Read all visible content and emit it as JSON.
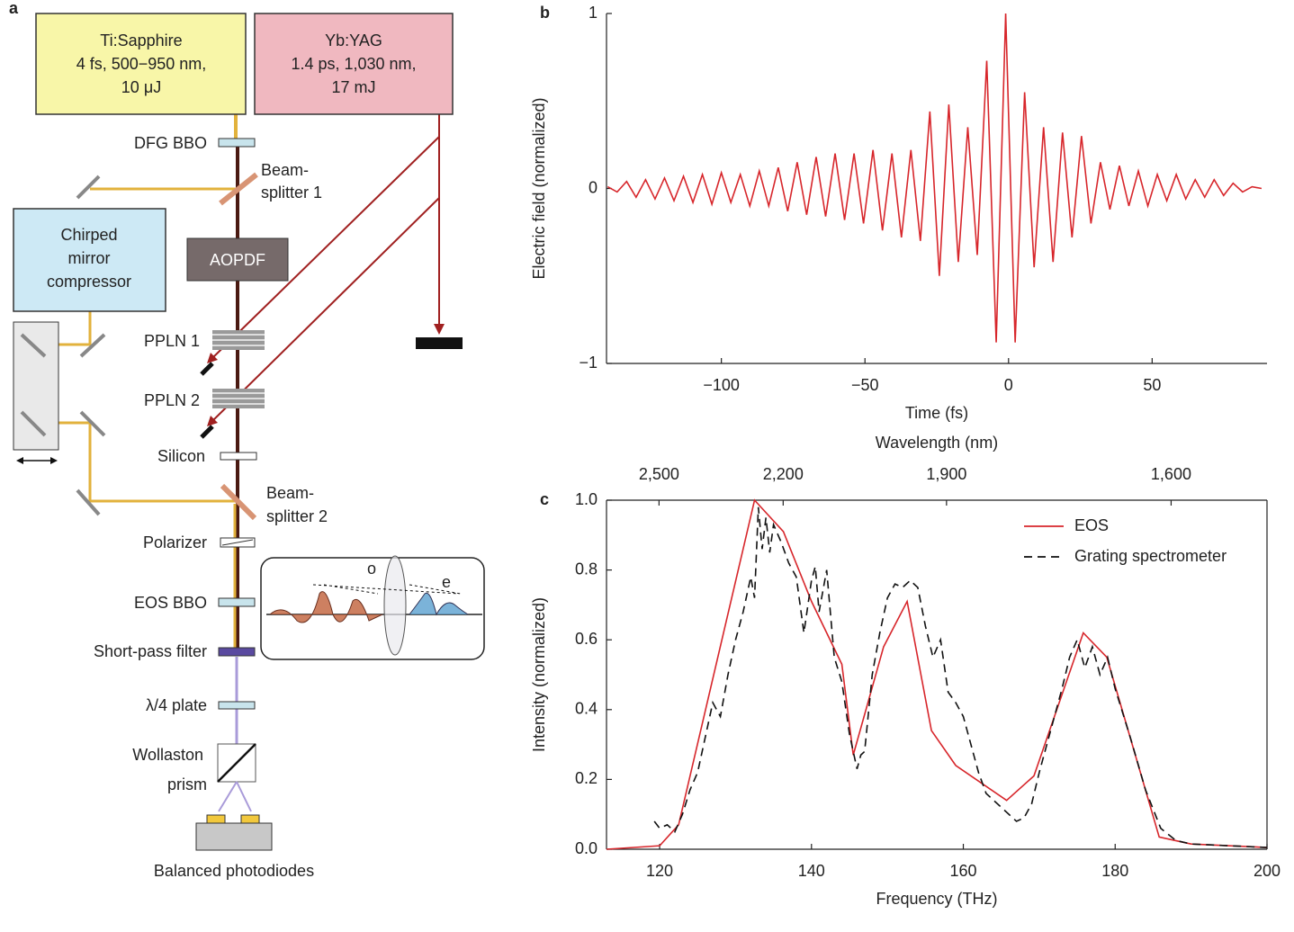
{
  "diagram": {
    "panel_label": "a",
    "ti_sapphire": [
      "Ti:Sapphire",
      "4 fs, 500−950 nm,",
      "10 μJ"
    ],
    "yb_yag": [
      "Yb:YAG",
      "1.4 ps, 1,030 nm,",
      "17 mJ"
    ],
    "compressor": [
      "Chirped",
      "mirror",
      "compressor"
    ],
    "aopdf": "AOPDF",
    "dfg_bbo": "DFG BBO",
    "beamsplitter_1": [
      "Beam-",
      "splitter 1"
    ],
    "ppln_1": "PPLN 1",
    "ppln_2": "PPLN 2",
    "silicon": "Silicon",
    "beamsplitter_2": [
      "Beam-",
      "splitter 2"
    ],
    "polarizer": "Polarizer",
    "eos_bbo": "EOS BBO",
    "short_pass_filter": "Short-pass filter",
    "quarter_wave_plate": "λ/4 plate",
    "wollaston": [
      "Wollaston",
      "prism"
    ],
    "photodiodes": "Balanced photodiodes",
    "inset": {
      "ordinary": "o",
      "extraordinary": "e"
    }
  },
  "chart_data": [
    {
      "type": "line",
      "panel_label": "b",
      "xlabel": "Time (fs)",
      "ylabel": "Electric field (normalized)",
      "color": "#d7262b",
      "x": [
        -139.6,
        -136.3,
        -133,
        -129.7,
        -126.4,
        -123.1,
        -119.8,
        -116.5,
        -113.2,
        -109.9,
        -106.6,
        -103.3,
        -100,
        -96.7,
        -93.4,
        -90.1,
        -86.8,
        -83.5,
        -80.2,
        -76.9,
        -73.6,
        -70.3,
        -67,
        -63.7,
        -60.4,
        -57.1,
        -53.8,
        -50.5,
        -47.2,
        -43.9,
        -40.6,
        -37.3,
        -34,
        -30.7,
        -27.4,
        -24.1,
        -20.8,
        -17.5,
        -14.2,
        -10.9,
        -7.6,
        -4.3,
        -1,
        2.3,
        5.6,
        8.9,
        12.2,
        15.5,
        18.8,
        22.1,
        25.4,
        28.7,
        32,
        35.3,
        38.6,
        41.9,
        45.2,
        48.5,
        51.8,
        55.1,
        58.4,
        61.7,
        65,
        68.3,
        71.6,
        74.9,
        78.2,
        81.5,
        84.8,
        88.1
      ],
      "values": [
        0.01,
        -0.02,
        0.04,
        -0.05,
        0.05,
        -0.06,
        0.06,
        -0.07,
        0.07,
        -0.08,
        0.08,
        -0.09,
        0.09,
        -0.08,
        0.08,
        -0.1,
        0.1,
        -0.1,
        0.12,
        -0.13,
        0.15,
        -0.15,
        0.18,
        -0.16,
        0.2,
        -0.18,
        0.2,
        -0.2,
        0.22,
        -0.24,
        0.2,
        -0.28,
        0.22,
        -0.3,
        0.44,
        -0.5,
        0.48,
        -0.42,
        0.35,
        -0.38,
        0.73,
        -0.88,
        1,
        -0.88,
        0.55,
        -0.45,
        0.35,
        -0.42,
        0.32,
        -0.28,
        0.3,
        -0.2,
        0.15,
        -0.12,
        0.13,
        -0.1,
        0.1,
        -0.1,
        0.08,
        -0.07,
        0.08,
        -0.06,
        0.05,
        -0.05,
        0.05,
        -0.04,
        0.03,
        -0.02,
        0.01,
        0
      ],
      "xlim": [
        -140,
        90
      ],
      "ylim": [
        -1,
        1
      ],
      "xticks": [
        {
          "value": -100,
          "label": "−100"
        },
        {
          "value": -50,
          "label": "−50"
        },
        0,
        50
      ],
      "yticks": [
        {
          "value": -1,
          "label": "−1"
        },
        0,
        1
      ]
    },
    {
      "type": "line",
      "panel_label": "c",
      "xlabel": "Frequency (THz)",
      "ylabel": "Intensity (normalized)",
      "x2label": "Wavelength (nm)",
      "legend": "upper right",
      "series": [
        {
          "name": "EOS",
          "color": "#d7262b",
          "dash": "solid",
          "x": [
            113,
            120,
            122.5,
            132.5,
            136.3,
            140,
            144,
            145.5,
            149.5,
            152.6,
            155.8,
            159,
            165.7,
            169.3,
            175.8,
            178.9,
            185.8,
            190,
            200
          ],
          "values": [
            0,
            0.01,
            0.07,
            1,
            0.91,
            0.71,
            0.53,
            0.27,
            0.58,
            0.71,
            0.34,
            0.24,
            0.14,
            0.21,
            0.62,
            0.55,
            0.035,
            0.015,
            0.005
          ]
        },
        {
          "name": "Grating spectrometer",
          "color": "#111111",
          "dash": "dashed",
          "x": [
            119.3,
            120,
            121,
            122,
            123,
            124,
            125,
            126,
            127,
            128,
            129,
            130,
            131,
            132,
            132.5,
            133,
            133.5,
            134,
            134.5,
            135,
            136,
            137,
            138,
            139,
            140,
            140.5,
            141,
            142,
            143,
            144,
            145,
            146,
            146.5,
            147,
            148,
            149,
            150,
            151,
            152,
            153,
            154,
            155,
            156,
            157,
            158,
            159,
            160,
            161,
            162,
            163,
            164,
            165,
            166,
            167,
            168,
            169,
            170,
            171,
            172,
            173,
            174,
            175,
            176,
            177,
            178,
            179,
            180,
            182,
            184,
            186,
            188,
            190,
            195,
            200
          ],
          "values": [
            0.08,
            0.06,
            0.07,
            0.05,
            0.1,
            0.17,
            0.22,
            0.32,
            0.42,
            0.38,
            0.5,
            0.6,
            0.68,
            0.78,
            0.72,
            0.98,
            0.86,
            0.95,
            0.85,
            0.93,
            0.88,
            0.82,
            0.78,
            0.62,
            0.77,
            0.81,
            0.68,
            0.8,
            0.55,
            0.48,
            0.33,
            0.23,
            0.27,
            0.28,
            0.5,
            0.62,
            0.72,
            0.76,
            0.75,
            0.77,
            0.75,
            0.64,
            0.55,
            0.6,
            0.45,
            0.42,
            0.38,
            0.3,
            0.22,
            0.16,
            0.14,
            0.12,
            0.1,
            0.08,
            0.09,
            0.13,
            0.22,
            0.3,
            0.38,
            0.46,
            0.55,
            0.6,
            0.52,
            0.58,
            0.5,
            0.55,
            0.46,
            0.32,
            0.17,
            0.06,
            0.025,
            0.015,
            0.01,
            0.005
          ]
        }
      ],
      "xlim": [
        113,
        200
      ],
      "ylim": [
        0,
        1
      ],
      "xticks": [
        120,
        140,
        160,
        180,
        200
      ],
      "yticks": [
        {
          "value": 0,
          "label": "0.0"
        },
        0.2,
        0.4,
        0.6,
        0.8,
        {
          "value": 1,
          "label": "1.0"
        }
      ],
      "x2ticks": [
        {
          "value": 2500,
          "label": "2,500"
        },
        {
          "value": 2200,
          "label": "2,200"
        },
        {
          "value": 1900,
          "label": "1,900"
        },
        {
          "value": 1600,
          "label": "1,600"
        }
      ]
    }
  ]
}
